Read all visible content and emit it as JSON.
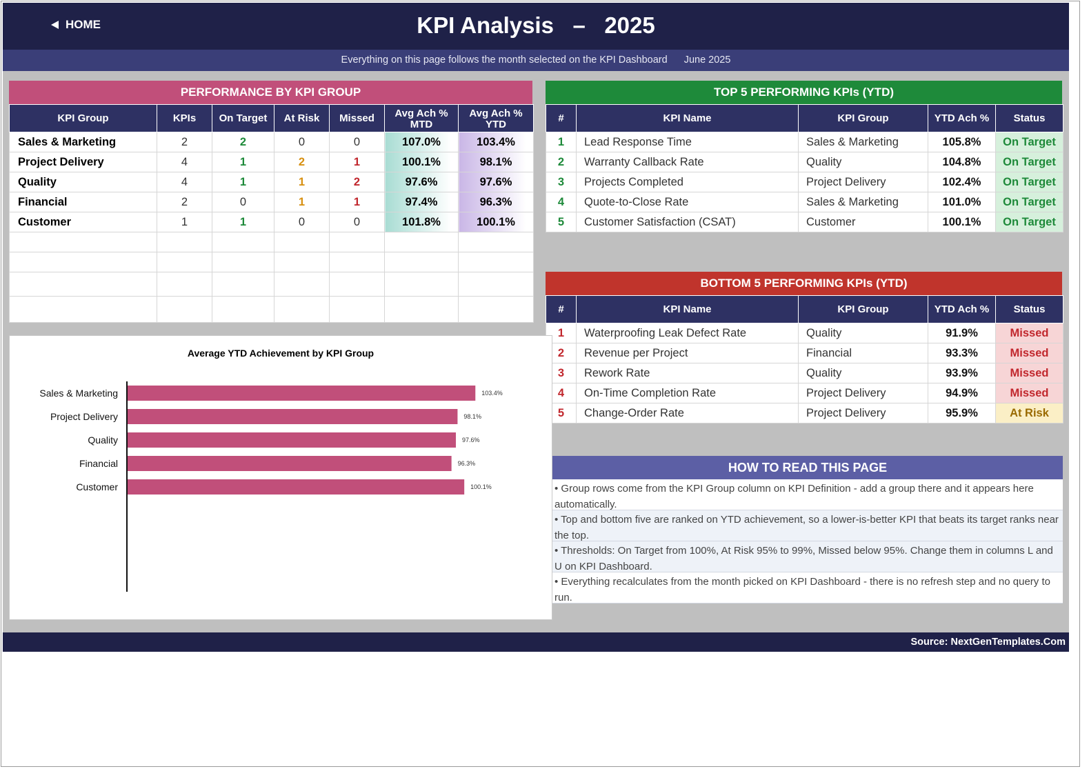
{
  "header": {
    "home_label": "HOME",
    "title": "KPI Analysis   –   2025",
    "subtitle": "Everything on this page follows the month selected on the KPI Dashboard",
    "month": "June 2025"
  },
  "performance": {
    "banner": "PERFORMANCE BY KPI GROUP",
    "banner_color": "#c14f7a",
    "columns": [
      "KPI Group",
      "KPIs",
      "On Target",
      "At Risk",
      "Missed",
      "Avg Ach % MTD",
      "Avg Ach % YTD"
    ],
    "rows": [
      {
        "group": "Sales & Marketing",
        "kpis": "2",
        "on_target": "2",
        "at_risk": "0",
        "missed": "0",
        "mtd": "107.0%",
        "ytd": "103.4%"
      },
      {
        "group": "Project Delivery",
        "kpis": "4",
        "on_target": "1",
        "at_risk": "2",
        "missed": "1",
        "mtd": "100.1%",
        "ytd": "98.1%"
      },
      {
        "group": "Quality",
        "kpis": "4",
        "on_target": "1",
        "at_risk": "1",
        "missed": "2",
        "mtd": "97.6%",
        "ytd": "97.6%"
      },
      {
        "group": "Financial",
        "kpis": "2",
        "on_target": "0",
        "at_risk": "1",
        "missed": "1",
        "mtd": "97.4%",
        "ytd": "96.3%"
      },
      {
        "group": "Customer",
        "kpis": "1",
        "on_target": "1",
        "at_risk": "0",
        "missed": "0",
        "mtd": "101.8%",
        "ytd": "100.1%"
      }
    ]
  },
  "top5": {
    "banner": "TOP 5 PERFORMING KPIs  (YTD)",
    "banner_color": "#1e8a3a",
    "columns": [
      "#",
      "KPI Name",
      "KPI Group",
      "YTD Ach %",
      "Status"
    ],
    "rows": [
      {
        "rank": "1",
        "name": "Lead Response Time",
        "group": "Sales & Marketing",
        "ach": "105.8%",
        "status": "On Target"
      },
      {
        "rank": "2",
        "name": "Warranty Callback Rate",
        "group": "Quality",
        "ach": "104.8%",
        "status": "On Target"
      },
      {
        "rank": "3",
        "name": "Projects Completed",
        "group": "Project Delivery",
        "ach": "102.4%",
        "status": "On Target"
      },
      {
        "rank": "4",
        "name": "Quote-to-Close Rate",
        "group": "Sales & Marketing",
        "ach": "101.0%",
        "status": "On Target"
      },
      {
        "rank": "5",
        "name": "Customer Satisfaction (CSAT)",
        "group": "Customer",
        "ach": "100.1%",
        "status": "On Target"
      }
    ]
  },
  "bottom5": {
    "banner": "BOTTOM 5 PERFORMING KPIs  (YTD)",
    "banner_color": "#c0342c",
    "columns": [
      "#",
      "KPI Name",
      "KPI Group",
      "YTD Ach %",
      "Status"
    ],
    "rows": [
      {
        "rank": "1",
        "name": "Waterproofing Leak Defect Rate",
        "group": "Quality",
        "ach": "91.9%",
        "status": "Missed"
      },
      {
        "rank": "2",
        "name": "Revenue per Project",
        "group": "Financial",
        "ach": "93.3%",
        "status": "Missed"
      },
      {
        "rank": "3",
        "name": "Rework Rate",
        "group": "Quality",
        "ach": "93.9%",
        "status": "Missed"
      },
      {
        "rank": "4",
        "name": "On-Time Completion Rate",
        "group": "Project Delivery",
        "ach": "94.9%",
        "status": "Missed"
      },
      {
        "rank": "5",
        "name": "Change-Order Rate",
        "group": "Project Delivery",
        "ach": "95.9%",
        "status": "At Risk"
      }
    ]
  },
  "chart_data": {
    "type": "bar",
    "orientation": "horizontal",
    "title": "Average YTD Achievement by KPI Group",
    "categories": [
      "Sales & Marketing",
      "Project Delivery",
      "Quality",
      "Financial",
      "Customer"
    ],
    "values": [
      103.4,
      98.1,
      97.6,
      96.3,
      100.1
    ],
    "value_labels": [
      "103.4%",
      "98.1%",
      "97.6%",
      "96.3%",
      "100.1%"
    ],
    "bar_color": "#c14f7a",
    "xlabel": "",
    "ylabel": "",
    "grid": false
  },
  "howto": {
    "title": "HOW TO READ THIS PAGE",
    "items": [
      "•  Group rows come from the KPI Group column on KPI Definition - add a group there and it appears here automatically.",
      "•  Top and bottom five are ranked on YTD achievement, so a lower-is-better KPI that beats its target ranks near the top.",
      "•  Thresholds: On Target from 100%, At Risk 95% to 99%, Missed below 95%. Change them in columns L and U on KPI Dashboard.",
      "•  Everything recalculates from the month picked on KPI Dashboard - there is no refresh step and no query to run."
    ]
  },
  "footer": {
    "source": "Source: NextGenTemplates.Com"
  },
  "colors": {
    "navy": "#1f2148",
    "header_row": "#2e3163",
    "on_target": "#1e8a3a",
    "at_risk": "#d79011",
    "missed": "#c1272d"
  }
}
